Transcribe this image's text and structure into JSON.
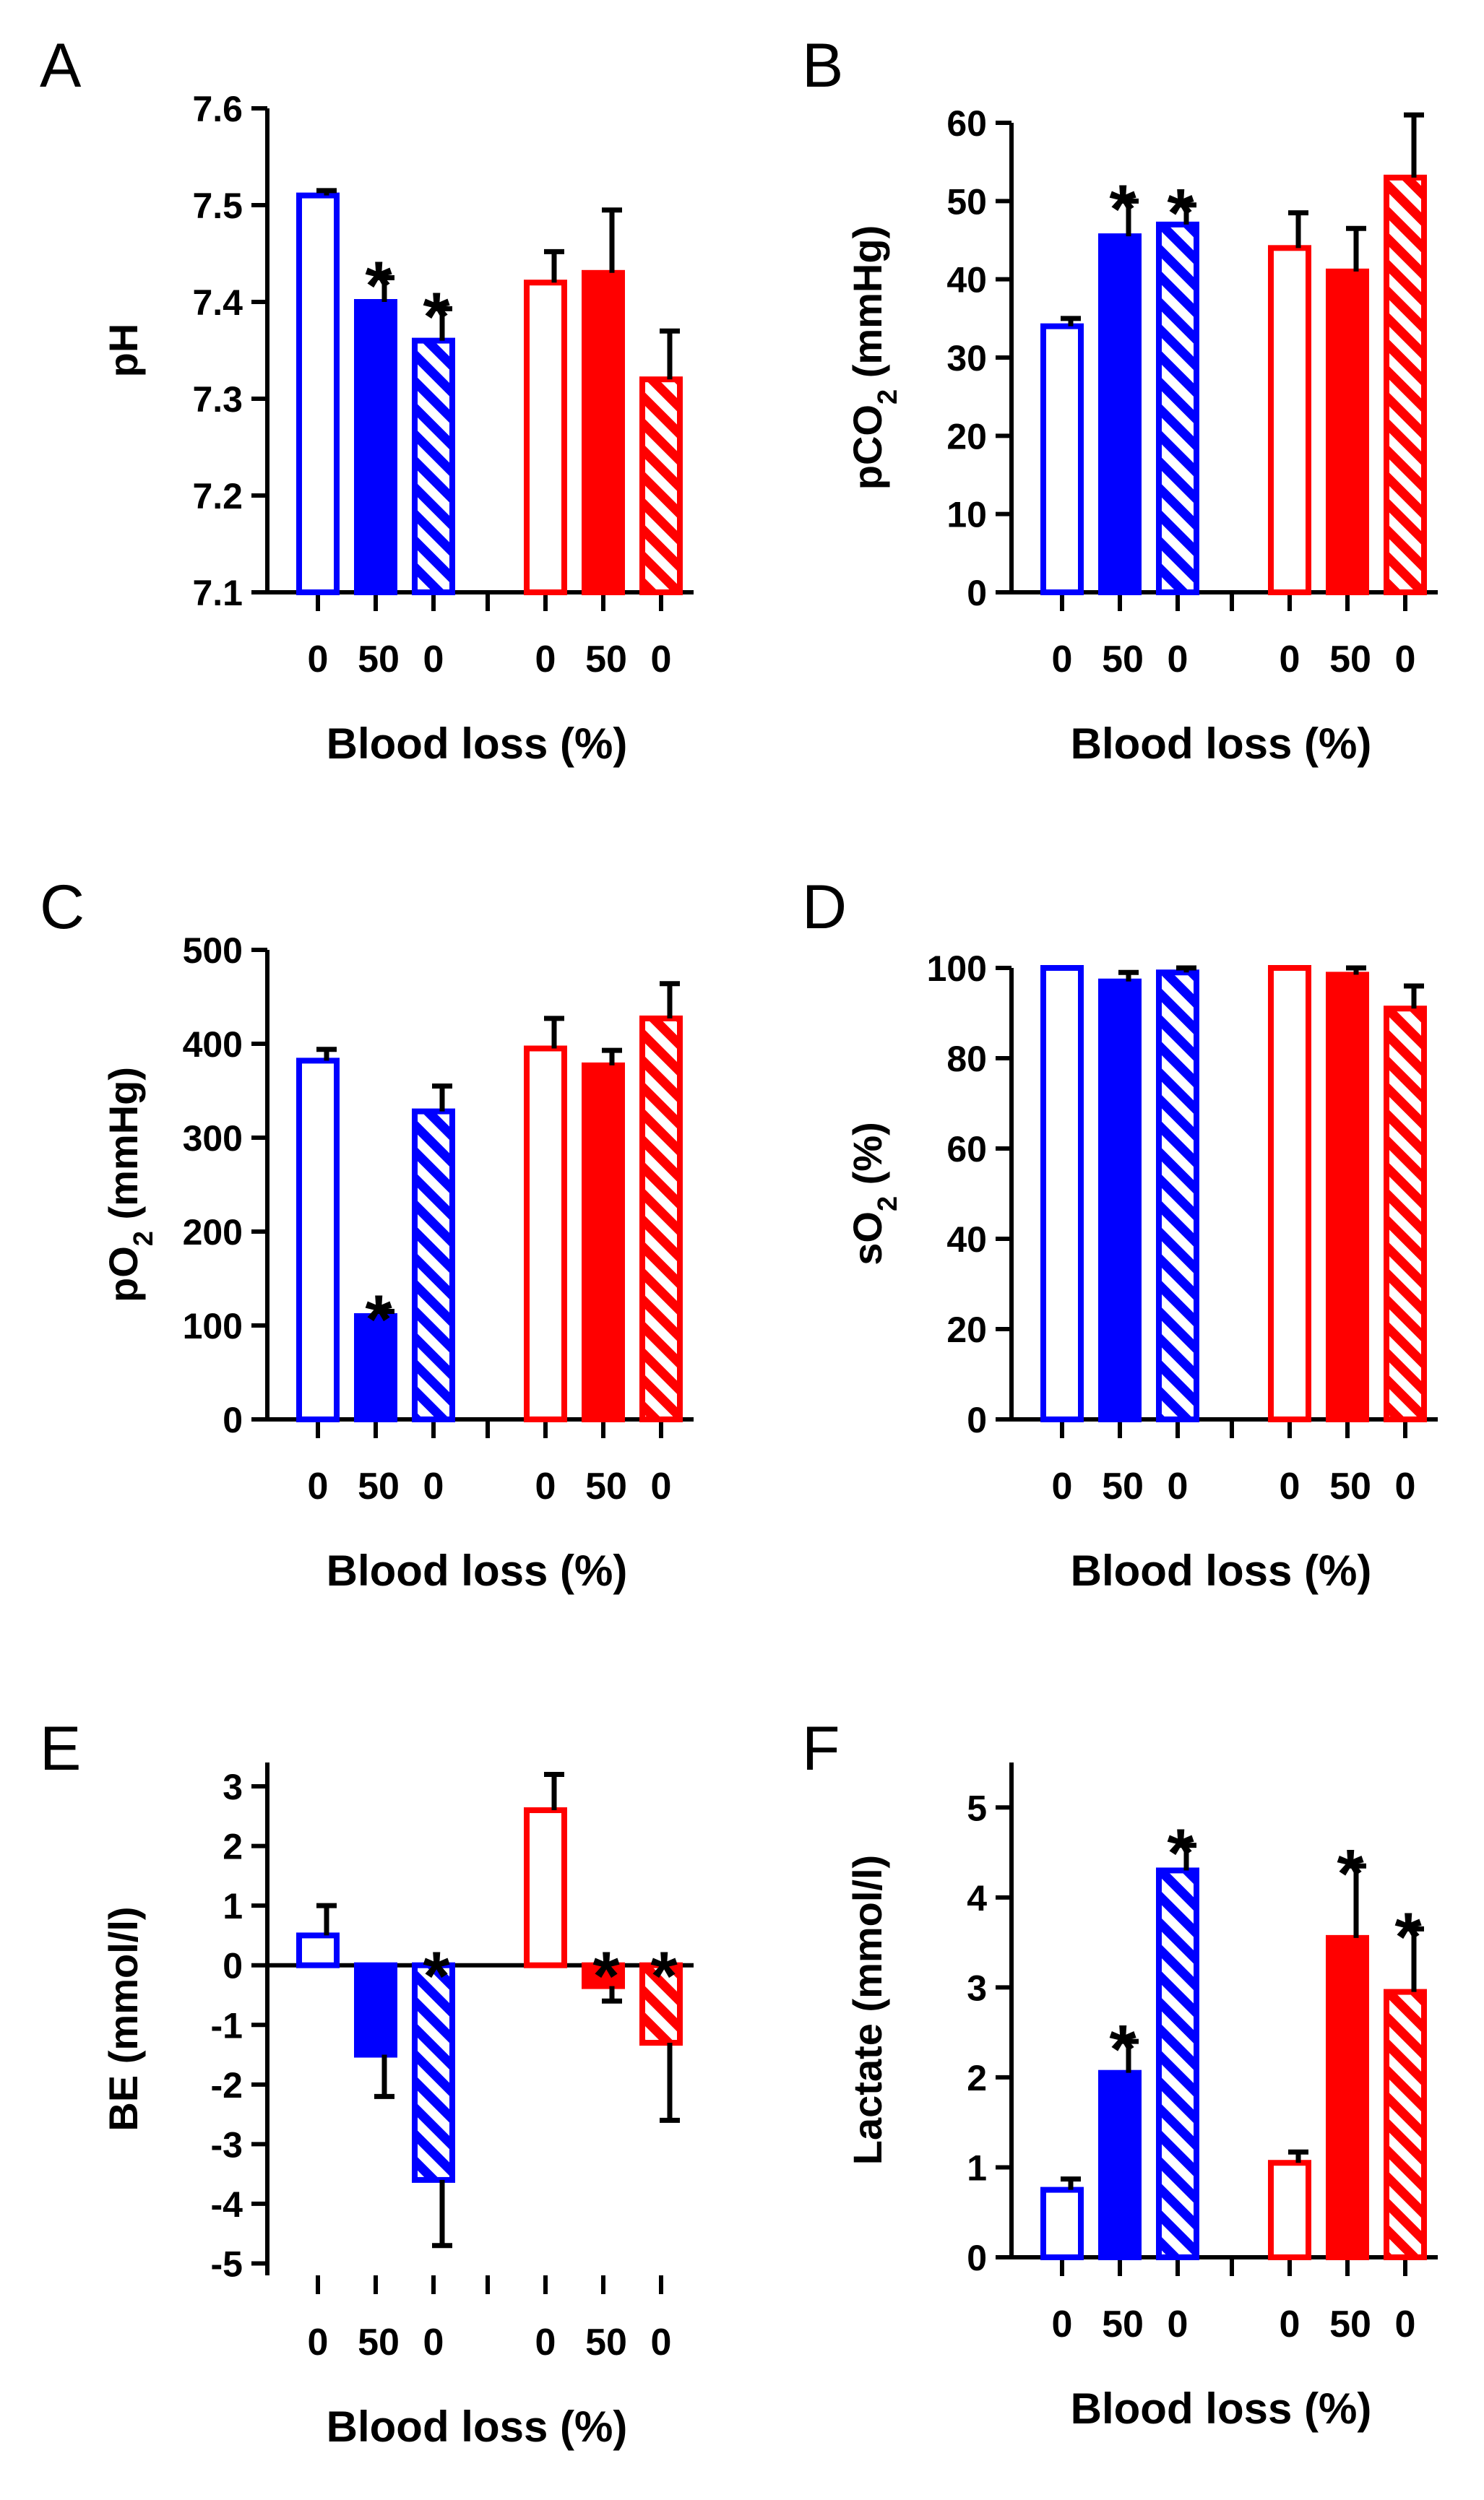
{
  "chart_data": [
    {
      "panel": "A",
      "type": "bar",
      "ylabel": "pH",
      "ylabel_parts": [
        {
          "t": "pH"
        }
      ],
      "xlabel": "Blood loss (%)",
      "ylim": [
        7.1,
        7.6
      ],
      "yticks": [
        "7.1",
        "7.2",
        "7.3",
        "7.4",
        "7.5",
        "7.6"
      ],
      "ytick_values": [
        7.1,
        7.2,
        7.3,
        7.4,
        7.5,
        7.6
      ],
      "categories": [
        "0",
        "50",
        "0",
        "0",
        "50",
        "0"
      ],
      "series": [
        {
          "name": "blue-baseline",
          "color": "#0000ff",
          "fill": "open",
          "value": 7.51,
          "error": 0.005,
          "star": false
        },
        {
          "name": "blue-50",
          "color": "#0000ff",
          "fill": "solid",
          "value": 7.4,
          "error": 0.025,
          "star": true
        },
        {
          "name": "blue-return",
          "color": "#0000ff",
          "fill": "hatched",
          "value": 7.36,
          "error": 0.033,
          "star": true
        },
        {
          "name": "red-baseline",
          "color": "#ff0000",
          "fill": "open",
          "value": 7.42,
          "error": 0.032,
          "star": false
        },
        {
          "name": "red-50",
          "color": "#ff0000",
          "fill": "solid",
          "value": 7.43,
          "error": 0.065,
          "star": false
        },
        {
          "name": "red-return",
          "color": "#ff0000",
          "fill": "hatched",
          "value": 7.32,
          "error": 0.05,
          "star": false
        }
      ]
    },
    {
      "panel": "B",
      "type": "bar",
      "ylabel": "pCO2 (mmHg)",
      "ylabel_parts": [
        {
          "t": "pCO"
        },
        {
          "t": "2",
          "sub": true
        },
        {
          "t": " (mmHg)"
        }
      ],
      "xlabel": "Blood loss (%)",
      "ylim": [
        0,
        60
      ],
      "yticks": [
        "0",
        "10",
        "20",
        "30",
        "40",
        "50",
        "60"
      ],
      "ytick_values": [
        0,
        10,
        20,
        30,
        40,
        50,
        60
      ],
      "categories": [
        "0",
        "50",
        "0",
        "0",
        "50",
        "0"
      ],
      "series": [
        {
          "name": "blue-baseline",
          "color": "#0000ff",
          "fill": "open",
          "value": 34,
          "error": 1,
          "star": false
        },
        {
          "name": "blue-50",
          "color": "#0000ff",
          "fill": "solid",
          "value": 45.5,
          "error": 4.5,
          "star": true
        },
        {
          "name": "blue-return",
          "color": "#0000ff",
          "fill": "hatched",
          "value": 47,
          "error": 2.5,
          "star": true
        },
        {
          "name": "red-baseline",
          "color": "#ff0000",
          "fill": "open",
          "value": 44,
          "error": 4.5,
          "star": false
        },
        {
          "name": "red-50",
          "color": "#ff0000",
          "fill": "solid",
          "value": 41,
          "error": 5.5,
          "star": false
        },
        {
          "name": "red-return",
          "color": "#ff0000",
          "fill": "hatched",
          "value": 53,
          "error": 8,
          "star": false
        }
      ]
    },
    {
      "panel": "C",
      "type": "bar",
      "ylabel": "pO2 (mmHg)",
      "ylabel_parts": [
        {
          "t": "pO"
        },
        {
          "t": "2",
          "sub": true
        },
        {
          "t": " (mmHg)"
        }
      ],
      "xlabel": "Blood loss (%)",
      "ylim": [
        0,
        500
      ],
      "yticks": [
        "0",
        "100",
        "200",
        "300",
        "400",
        "500"
      ],
      "ytick_values": [
        0,
        100,
        200,
        300,
        400,
        500
      ],
      "categories": [
        "0",
        "50",
        "0",
        "0",
        "50",
        "0"
      ],
      "series": [
        {
          "name": "blue-baseline",
          "color": "#0000ff",
          "fill": "open",
          "value": 382,
          "error": 12,
          "star": false
        },
        {
          "name": "blue-50",
          "color": "#0000ff",
          "fill": "solid",
          "value": 110,
          "error": 5,
          "star": true
        },
        {
          "name": "blue-return",
          "color": "#0000ff",
          "fill": "hatched",
          "value": 328,
          "error": 27,
          "star": false
        },
        {
          "name": "red-baseline",
          "color": "#ff0000",
          "fill": "open",
          "value": 395,
          "error": 32,
          "star": false
        },
        {
          "name": "red-50",
          "color": "#ff0000",
          "fill": "solid",
          "value": 377,
          "error": 16,
          "star": false
        },
        {
          "name": "red-return",
          "color": "#ff0000",
          "fill": "hatched",
          "value": 427,
          "error": 37,
          "star": false
        }
      ]
    },
    {
      "panel": "D",
      "type": "bar",
      "ylabel": "sO2 (%)",
      "ylabel_parts": [
        {
          "t": "sO"
        },
        {
          "t": "2",
          "sub": true
        },
        {
          "t": " (%)"
        }
      ],
      "xlabel": "Blood loss (%)",
      "ylim": [
        0,
        100
      ],
      "yticks": [
        "0",
        "20",
        "40",
        "60",
        "80",
        "100"
      ],
      "ytick_values": [
        0,
        20,
        40,
        60,
        80,
        100
      ],
      "categories": [
        "0",
        "50",
        "0",
        "0",
        "50",
        "0"
      ],
      "series": [
        {
          "name": "blue-baseline",
          "color": "#0000ff",
          "fill": "open",
          "value": 100,
          "error": 0,
          "star": false
        },
        {
          "name": "blue-50",
          "color": "#0000ff",
          "fill": "solid",
          "value": 97,
          "error": 2,
          "star": false
        },
        {
          "name": "blue-return",
          "color": "#0000ff",
          "fill": "hatched",
          "value": 99,
          "error": 1,
          "star": false
        },
        {
          "name": "red-baseline",
          "color": "#ff0000",
          "fill": "open",
          "value": 100,
          "error": 0,
          "star": false
        },
        {
          "name": "red-50",
          "color": "#ff0000",
          "fill": "solid",
          "value": 98.5,
          "error": 1.5,
          "star": false
        },
        {
          "name": "red-return",
          "color": "#ff0000",
          "fill": "hatched",
          "value": 91,
          "error": 5,
          "star": false
        }
      ]
    },
    {
      "panel": "E",
      "type": "bar",
      "ylabel": "BE (mmol/l)",
      "ylabel_parts": [
        {
          "t": "BE (mmol/l)"
        }
      ],
      "xlabel": "Blood loss (%)",
      "ylim": [
        -5.2,
        3.4
      ],
      "yticks": [
        "-5",
        "-4",
        "-3",
        "-2",
        "-1",
        "0",
        "1",
        "2",
        "3"
      ],
      "ytick_values": [
        -5,
        -4,
        -3,
        -2,
        -1,
        0,
        1,
        2,
        3
      ],
      "categories": [
        "0",
        "50",
        "0",
        "0",
        "50",
        "0"
      ],
      "series": [
        {
          "name": "blue-baseline",
          "color": "#0000ff",
          "fill": "open",
          "value": 0.5,
          "error": 0.5,
          "star": false
        },
        {
          "name": "blue-50",
          "color": "#0000ff",
          "fill": "solid",
          "value": -1.5,
          "error": 0.7,
          "star": false
        },
        {
          "name": "blue-return",
          "color": "#0000ff",
          "fill": "hatched",
          "value": -3.6,
          "error": 1.1,
          "star": true
        },
        {
          "name": "red-baseline",
          "color": "#ff0000",
          "fill": "open",
          "value": 2.6,
          "error": 0.6,
          "star": false
        },
        {
          "name": "red-50",
          "color": "#ff0000",
          "fill": "solid",
          "value": -0.35,
          "error": 0.25,
          "star": true
        },
        {
          "name": "red-return",
          "color": "#ff0000",
          "fill": "hatched",
          "value": -1.3,
          "error": 1.3,
          "star": true
        }
      ]
    },
    {
      "panel": "F",
      "type": "bar",
      "ylabel": "Lactate (mmol/l)",
      "ylabel_parts": [
        {
          "t": "Lactate (mmol/l)"
        }
      ],
      "xlabel": "Blood loss (%)",
      "ylim": [
        0,
        5.5
      ],
      "yticks": [
        "0",
        "1",
        "2",
        "3",
        "4",
        "5"
      ],
      "ytick_values": [
        0,
        1,
        2,
        3,
        4,
        5
      ],
      "categories": [
        "0",
        "50",
        "0",
        "0",
        "50",
        "0"
      ],
      "series": [
        {
          "name": "blue-baseline",
          "color": "#0000ff",
          "fill": "open",
          "value": 0.75,
          "error": 0.12,
          "star": false
        },
        {
          "name": "blue-50",
          "color": "#0000ff",
          "fill": "solid",
          "value": 2.05,
          "error": 0.35,
          "star": true
        },
        {
          "name": "blue-return",
          "color": "#0000ff",
          "fill": "hatched",
          "value": 4.3,
          "error": 0.28,
          "star": true
        },
        {
          "name": "red-baseline",
          "color": "#ff0000",
          "fill": "open",
          "value": 1.05,
          "error": 0.12,
          "star": false
        },
        {
          "name": "red-50",
          "color": "#ff0000",
          "fill": "solid",
          "value": 3.55,
          "error": 0.8,
          "star": true
        },
        {
          "name": "red-return",
          "color": "#ff0000",
          "fill": "hatched",
          "value": 2.95,
          "error": 0.7,
          "star": true
        }
      ]
    }
  ]
}
